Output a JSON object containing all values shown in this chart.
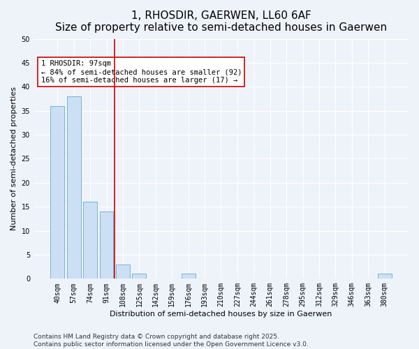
{
  "title": "1, RHOSDIR, GAERWEN, LL60 6AF",
  "subtitle": "Size of property relative to semi-detached houses in Gaerwen",
  "xlabel": "Distribution of semi-detached houses by size in Gaerwen",
  "ylabel": "Number of semi-detached properties",
  "categories": [
    "40sqm",
    "57sqm",
    "74sqm",
    "91sqm",
    "108sqm",
    "125sqm",
    "142sqm",
    "159sqm",
    "176sqm",
    "193sqm",
    "210sqm",
    "227sqm",
    "244sqm",
    "261sqm",
    "278sqm",
    "295sqm",
    "312sqm",
    "329sqm",
    "346sqm",
    "363sqm",
    "380sqm"
  ],
  "values": [
    36,
    38,
    16,
    14,
    3,
    1,
    0,
    0,
    1,
    0,
    0,
    0,
    0,
    0,
    0,
    0,
    0,
    0,
    0,
    0,
    1
  ],
  "bar_color": "#cce0f5",
  "bar_edge_color": "#7ab0d4",
  "background_color": "#eef3fa",
  "grid_color": "#ffffff",
  "vline_color": "#cc0000",
  "annotation_title": "1 RHOSDIR: 97sqm",
  "annotation_line1": "← 84% of semi-detached houses are smaller (92)",
  "annotation_line2": "16% of semi-detached houses are larger (17) →",
  "annotation_box_color": "#ffffff",
  "annotation_box_edge": "#cc0000",
  "ylim": [
    0,
    50
  ],
  "yticks": [
    0,
    5,
    10,
    15,
    20,
    25,
    30,
    35,
    40,
    45,
    50
  ],
  "footer_line1": "Contains HM Land Registry data © Crown copyright and database right 2025.",
  "footer_line2": "Contains public sector information licensed under the Open Government Licence v3.0.",
  "title_fontsize": 11,
  "subtitle_fontsize": 10,
  "axis_label_fontsize": 8,
  "tick_fontsize": 7,
  "annotation_fontsize": 7.5,
  "footer_fontsize": 6.5
}
